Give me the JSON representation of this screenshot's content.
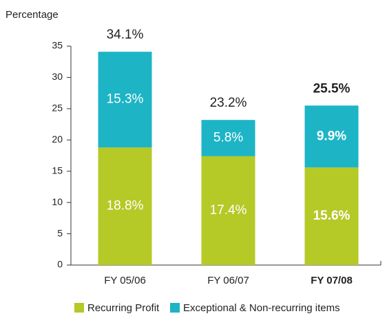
{
  "chart_data": {
    "type": "stacked_bar",
    "y_label": "Percentage",
    "categories": [
      "FY 05/06",
      "FY 06/07",
      "FY 07/08"
    ],
    "series": [
      {
        "name": "Recurring Profit",
        "color": "#b5c927",
        "values": [
          18.8,
          17.4,
          15.6
        ],
        "value_labels": [
          "18.8%",
          "17.4%",
          "15.6%"
        ]
      },
      {
        "name": "Exceptional & Non-recurring items",
        "color": "#1db4c6",
        "values": [
          15.3,
          5.8,
          9.9
        ],
        "value_labels": [
          "15.3%",
          "5.8%",
          "9.9%"
        ]
      }
    ],
    "totals": [
      34.1,
      23.2,
      25.5
    ],
    "total_labels": [
      "34.1%",
      "23.2%",
      "25.5%"
    ],
    "ylim": [
      0,
      35
    ],
    "yticks": [
      0,
      5,
      10,
      15,
      20,
      25,
      30,
      35
    ],
    "grid": false,
    "legend": "bottom"
  }
}
